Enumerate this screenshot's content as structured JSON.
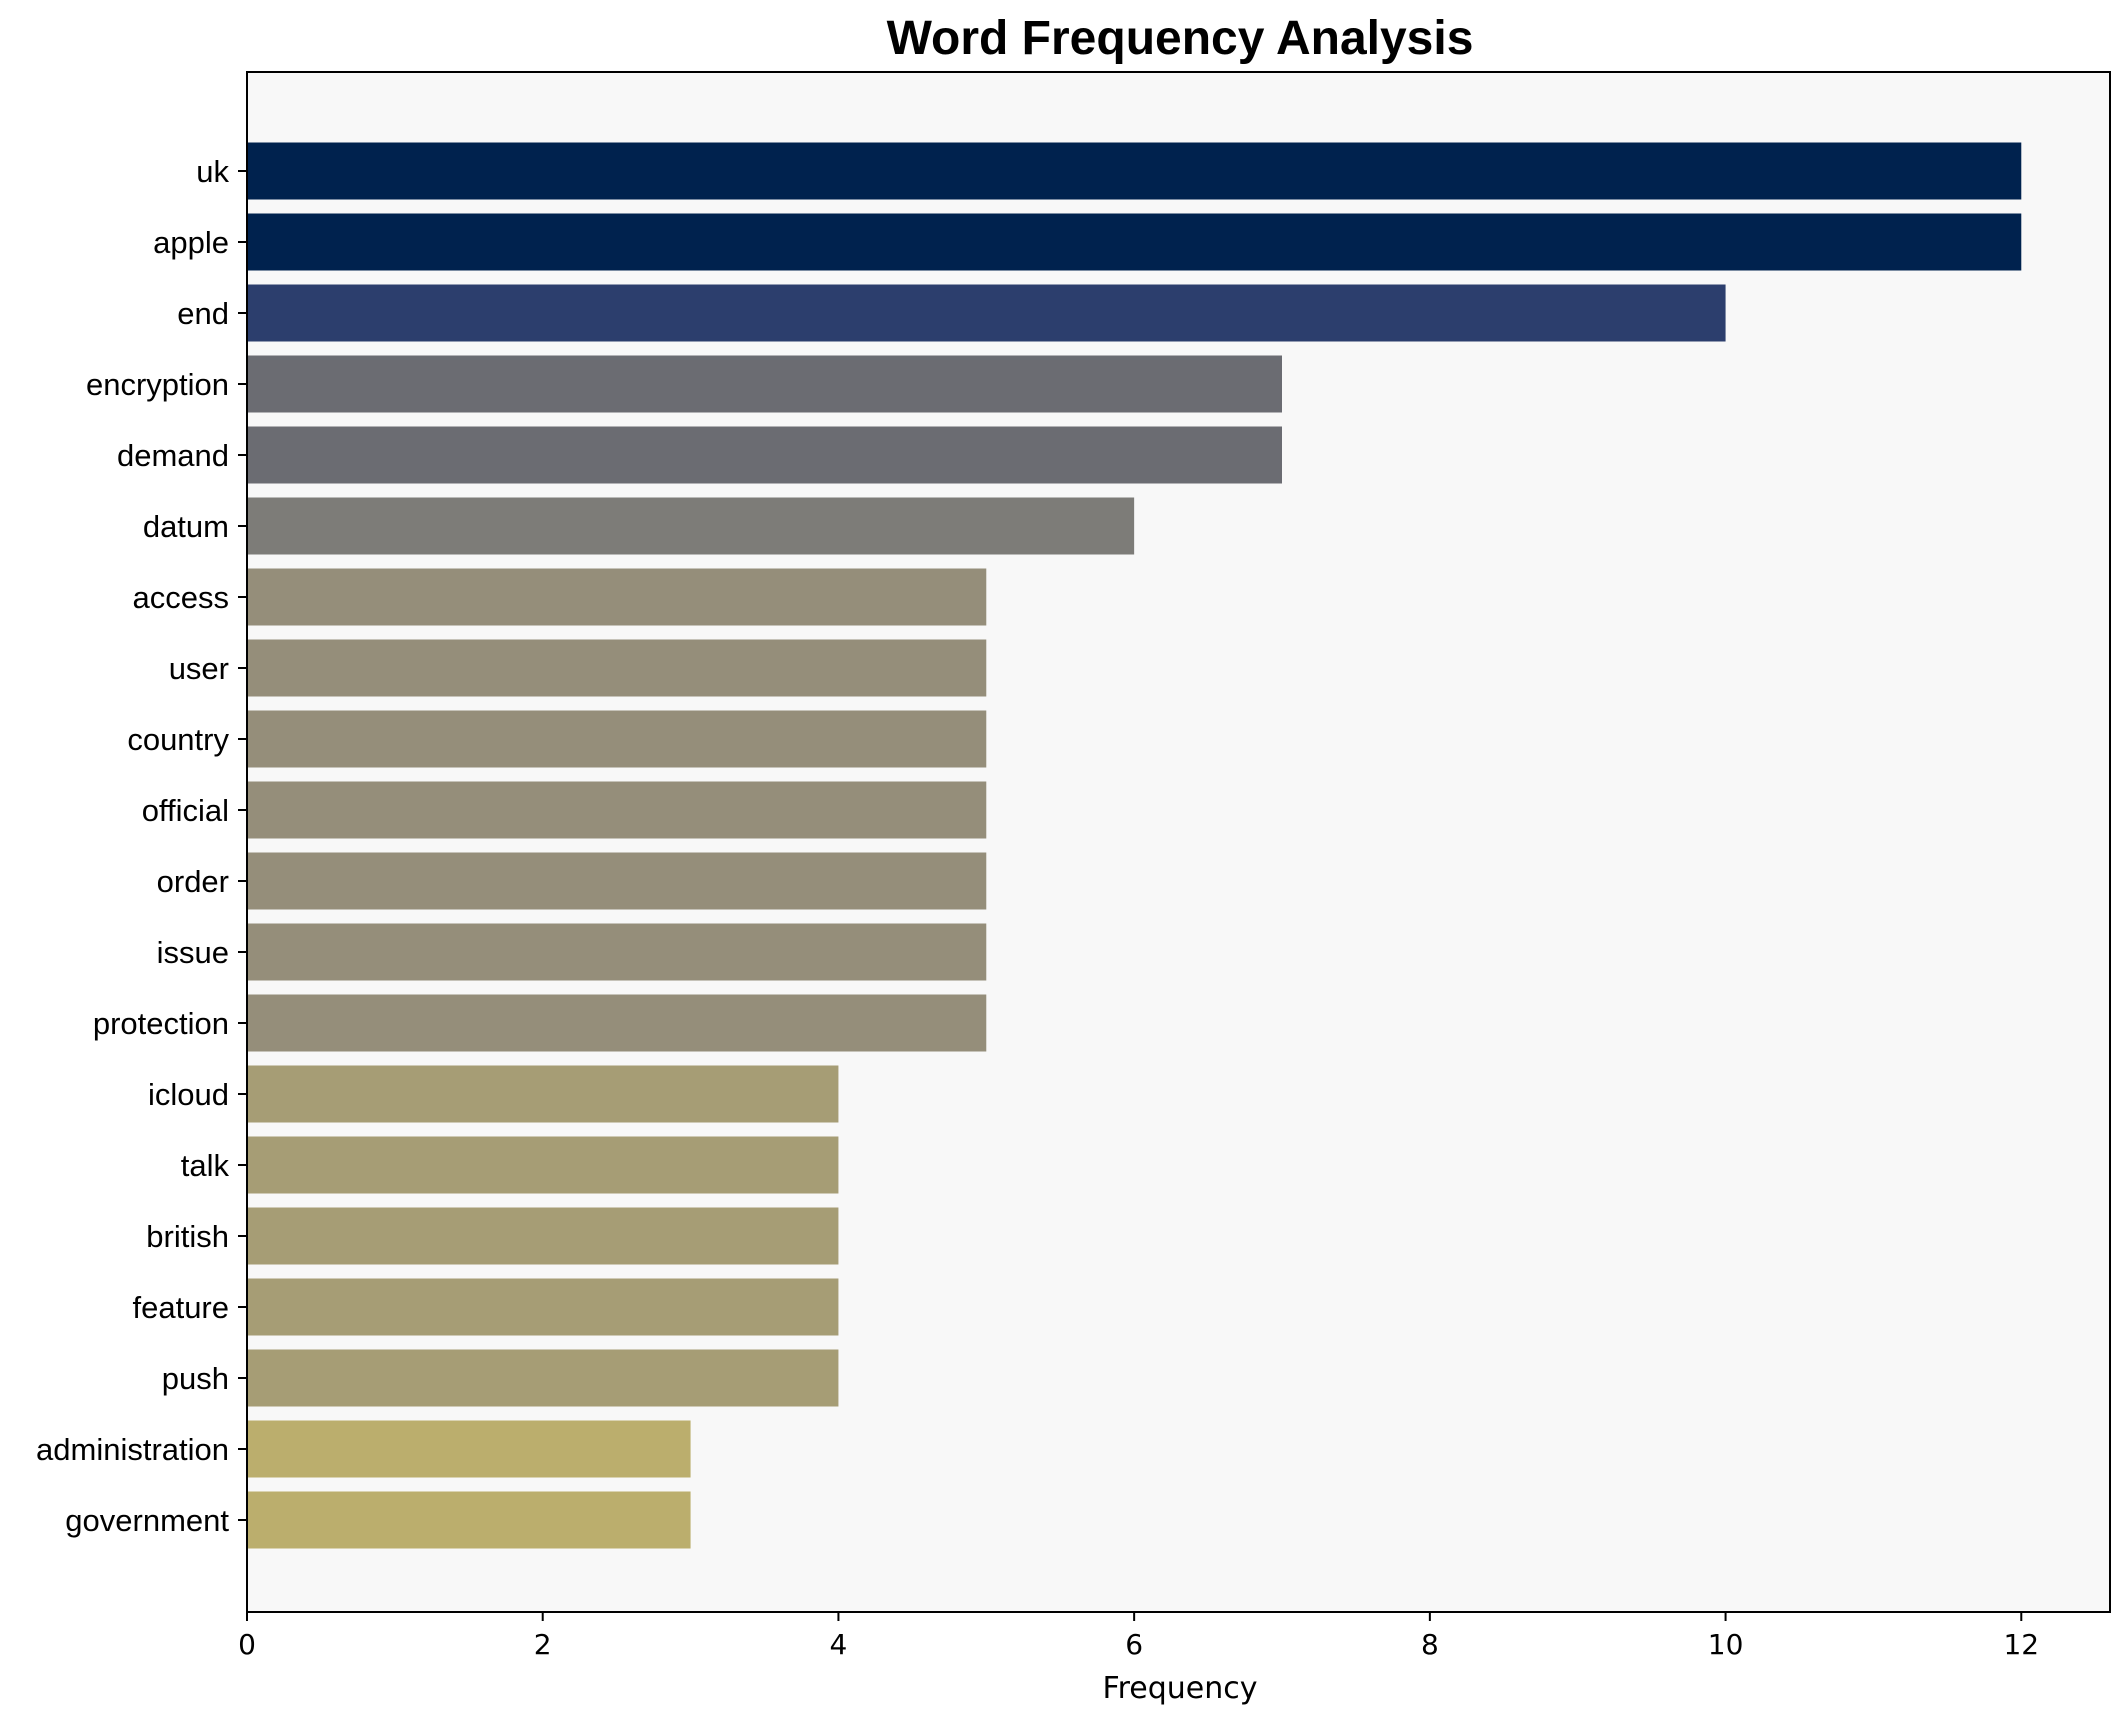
{
  "chart_data": {
    "type": "bar",
    "orientation": "horizontal",
    "title": "Word Frequency Analysis",
    "xlabel": "Frequency",
    "ylabel": "",
    "xlim": [
      0,
      12.6
    ],
    "xticks": [
      0,
      2,
      4,
      6,
      8,
      10,
      12
    ],
    "grid": false,
    "background": "#f8f8f8",
    "categories": [
      "uk",
      "apple",
      "end",
      "encryption",
      "demand",
      "datum",
      "access",
      "user",
      "country",
      "official",
      "order",
      "issue",
      "protection",
      "icloud",
      "talk",
      "british",
      "feature",
      "push",
      "administration",
      "government"
    ],
    "values": [
      12,
      12,
      10,
      7,
      7,
      6,
      5,
      5,
      5,
      5,
      5,
      5,
      5,
      4,
      4,
      4,
      4,
      4,
      3,
      3
    ],
    "colors": [
      "#00224e",
      "#00224e",
      "#2c3e6d",
      "#6b6c72",
      "#6b6c72",
      "#7d7c78",
      "#958e7a",
      "#958e7a",
      "#958e7a",
      "#958e7a",
      "#958e7a",
      "#958e7a",
      "#958e7a",
      "#a69d75",
      "#a69d75",
      "#a69d75",
      "#a69d75",
      "#a69d75",
      "#bbae6d",
      "#bbae6d"
    ]
  }
}
